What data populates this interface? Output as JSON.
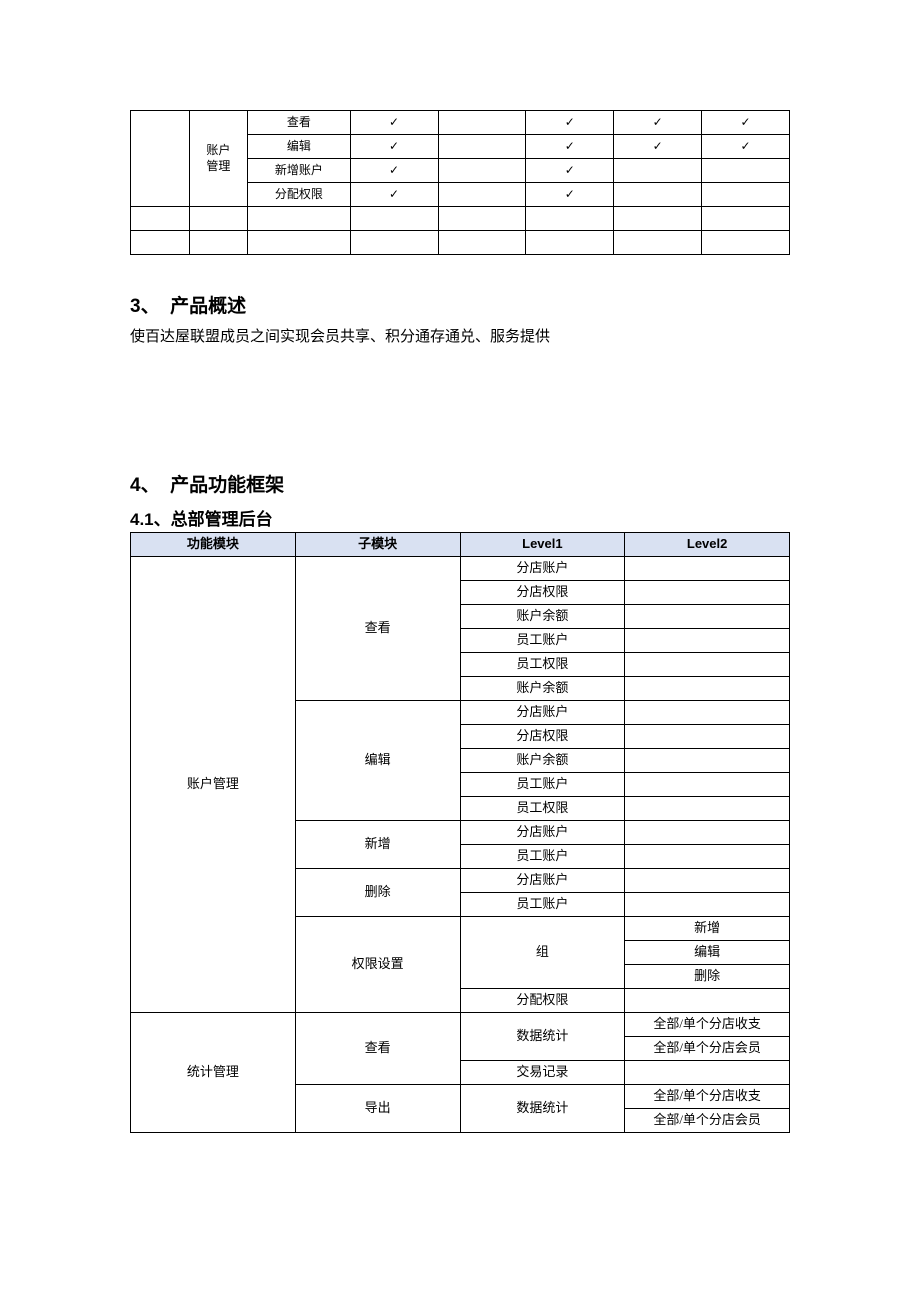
{
  "table1": {
    "col1_label": "账户\n管理",
    "rows": [
      {
        "c2": "查看",
        "c3": "✓",
        "c4": "",
        "c5": "✓",
        "c6": "✓",
        "c7": "✓"
      },
      {
        "c2": "编辑",
        "c3": "✓",
        "c4": "",
        "c5": "✓",
        "c6": "✓",
        "c7": "✓"
      },
      {
        "c2": "新增账户",
        "c3": "✓",
        "c4": "",
        "c5": "✓",
        "c6": "",
        "c7": ""
      },
      {
        "c2": "分配权限",
        "c3": "✓",
        "c4": "",
        "c5": "✓",
        "c6": "",
        "c7": ""
      }
    ]
  },
  "section3": {
    "num": "3、",
    "title": "产品概述",
    "body": "使百达屋联盟成员之间实现会员共享、积分通存通兑、服务提供"
  },
  "section4": {
    "num": "4、",
    "title": "产品功能框架",
    "sub_num": "4.1、",
    "sub_title": "总部管理后台"
  },
  "table2": {
    "headers": [
      "功能模块",
      "子模块",
      "Level1",
      "Level2"
    ],
    "header_bg": "#d9e1f2",
    "border_color": "#000000",
    "module1": "账户管理",
    "module2": "统计管理",
    "view": "查看",
    "edit": "编辑",
    "add": "新增",
    "del": "删除",
    "perm": "权限设置",
    "export": "导出",
    "l1_branch_acct": "分店账户",
    "l1_branch_perm": "分店权限",
    "l1_acct_bal": "账户余额",
    "l1_emp_acct": "员工账户",
    "l1_emp_perm": "员工权限",
    "l1_group": "组",
    "l1_assign": "分配权限",
    "l1_stats": "数据统计",
    "l1_trans": "交易记录",
    "l2_add": "新增",
    "l2_edit": "编辑",
    "l2_del": "删除",
    "l2_all_branch_io": "全部/单个分店收支",
    "l2_all_branch_mem": "全部/单个分店会员"
  }
}
